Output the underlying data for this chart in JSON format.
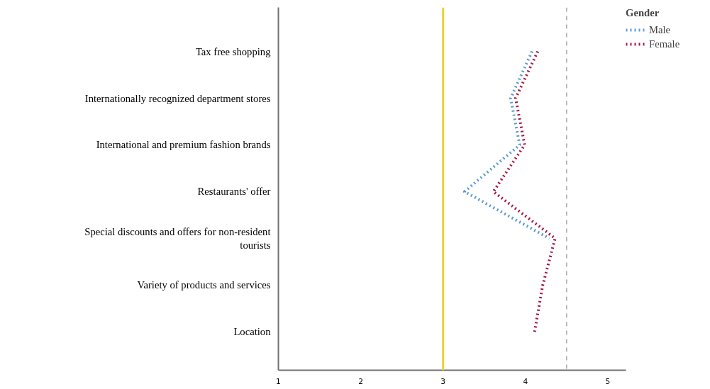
{
  "chart_data": {
    "type": "line",
    "orientation": "horizontal",
    "categories": [
      "Tax free shopping",
      "Internationally recognized department stores",
      "International and premium fashion brands",
      "Restaurants' offer",
      "Special discounts and offers for non-resident tourists",
      "Variety of products and services",
      "Location"
    ],
    "series": [
      {
        "name": "Male",
        "color": "#5b9bd5",
        "values": [
          4.08,
          3.82,
          3.93,
          3.26,
          4.29,
          null,
          null
        ]
      },
      {
        "name": "Female",
        "color": "#a5173f",
        "values": [
          4.15,
          3.88,
          3.99,
          3.61,
          4.36,
          4.21,
          4.11
        ]
      }
    ],
    "xlim": [
      1,
      5.22
    ],
    "xticks": [
      1,
      2,
      3,
      4,
      5
    ],
    "legend_title": "Gender",
    "legend": "top right",
    "line_style": "dotted",
    "grid": false,
    "ref_lines": [
      {
        "axis": "x",
        "value": 3,
        "color": "#e6d430",
        "line_style": "solid"
      },
      {
        "axis": "x",
        "value": 4.5,
        "color": "#808080",
        "line_style": "dashed"
      }
    ]
  }
}
